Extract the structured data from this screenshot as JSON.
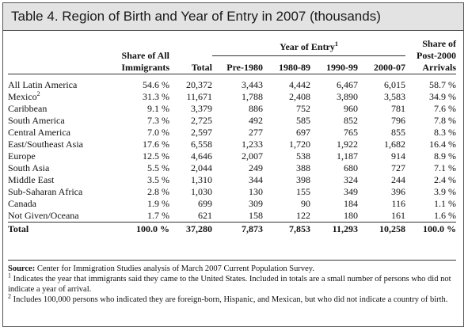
{
  "title": "Table 4. Region of Birth and Year of Entry in 2007 (thousands)",
  "headers": {
    "share": [
      "Share of All",
      "Immigrants"
    ],
    "total": "Total",
    "year_group": "Year of Entry",
    "year_group_sup": "1",
    "pre1980": "Pre-1980",
    "y1980": "1980-89",
    "y1990": "1990-99",
    "y2000": "2000-07",
    "post": [
      "Share of",
      "Post-2000",
      "Arrivals"
    ]
  },
  "rows": [
    {
      "label": "All Latin America",
      "sup": "",
      "share": "54.6 %",
      "total": "20,372",
      "pre1980": "3,443",
      "y1980": "4,442",
      "y1990": "6,467",
      "y2000": "6,015",
      "post": "58.7 %"
    },
    {
      "label": "Mexico",
      "sup": "2",
      "share": "31.3 %",
      "total": "11,671",
      "pre1980": "1,788",
      "y1980": "2,408",
      "y1990": "3,890",
      "y2000": "3,583",
      "post": "34.9 %"
    },
    {
      "label": "Caribbean",
      "sup": "",
      "share": "9.1 %",
      "total": "3,379",
      "pre1980": "886",
      "y1980": "752",
      "y1990": "960",
      "y2000": "781",
      "post": "7.6 %"
    },
    {
      "label": "South America",
      "sup": "",
      "share": "7.3 %",
      "total": "2,725",
      "pre1980": "492",
      "y1980": "585",
      "y1990": "852",
      "y2000": "796",
      "post": "7.8 %"
    },
    {
      "label": "Central America",
      "sup": "",
      "share": "7.0 %",
      "total": "2,597",
      "pre1980": "277",
      "y1980": "697",
      "y1990": "765",
      "y2000": "855",
      "post": "8.3 %"
    },
    {
      "label": "East/Southeast Asia",
      "sup": "",
      "share": "17.6 %",
      "total": "6,558",
      "pre1980": "1,233",
      "y1980": "1,720",
      "y1990": "1,922",
      "y2000": "1,682",
      "post": "16.4 %"
    },
    {
      "label": "Europe",
      "sup": "",
      "share": "12.5 %",
      "total": "4,646",
      "pre1980": "2,007",
      "y1980": "538",
      "y1990": "1,187",
      "y2000": "914",
      "post": "8.9 %"
    },
    {
      "label": "South Asia",
      "sup": "",
      "share": "5.5 %",
      "total": "2,044",
      "pre1980": "249",
      "y1980": "388",
      "y1990": "680",
      "y2000": "727",
      "post": "7.1 %"
    },
    {
      "label": "Middle East",
      "sup": "",
      "share": "3.5 %",
      "total": "1,310",
      "pre1980": "344",
      "y1980": "398",
      "y1990": "324",
      "y2000": "244",
      "post": "2.4 %"
    },
    {
      "label": "Sub-Saharan Africa",
      "sup": "",
      "share": "2.8 %",
      "total": "1,030",
      "pre1980": "130",
      "y1980": "155",
      "y1990": "349",
      "y2000": "396",
      "post": "3.9 %"
    },
    {
      "label": "Canada",
      "sup": "",
      "share": "1.9 %",
      "total": "699",
      "pre1980": "309",
      "y1980": "90",
      "y1990": "184",
      "y2000": "116",
      "post": "1.1 %"
    },
    {
      "label": "Not Given/Oceana",
      "sup": "",
      "share": "1.7 %",
      "total": "621",
      "pre1980": "158",
      "y1980": "122",
      "y1990": "180",
      "y2000": "161",
      "post": "1.6 %"
    }
  ],
  "total_row": {
    "label": "Total",
    "share": "100.0 %",
    "total": "37,280",
    "pre1980": "7,873",
    "y1980": "7,853",
    "y1990": "11,293",
    "y2000": "10,258",
    "post": "100.0 %"
  },
  "footnotes": {
    "source_label": "Source:",
    "source_text": " Center for Immigration Studies analysis of March 2007 Current Population Survey.",
    "note1_sup": "1",
    "note1_text": " Indicates the year that immigrants said they came to the United States. Included in totals are a small number of persons who did not indicate a year of arrival.",
    "note2_sup": "2",
    "note2_text": " Includes 100,000 persons who indicated they are foreign-born, Hispanic, and Mexican, but who did not indicate a country of birth."
  }
}
